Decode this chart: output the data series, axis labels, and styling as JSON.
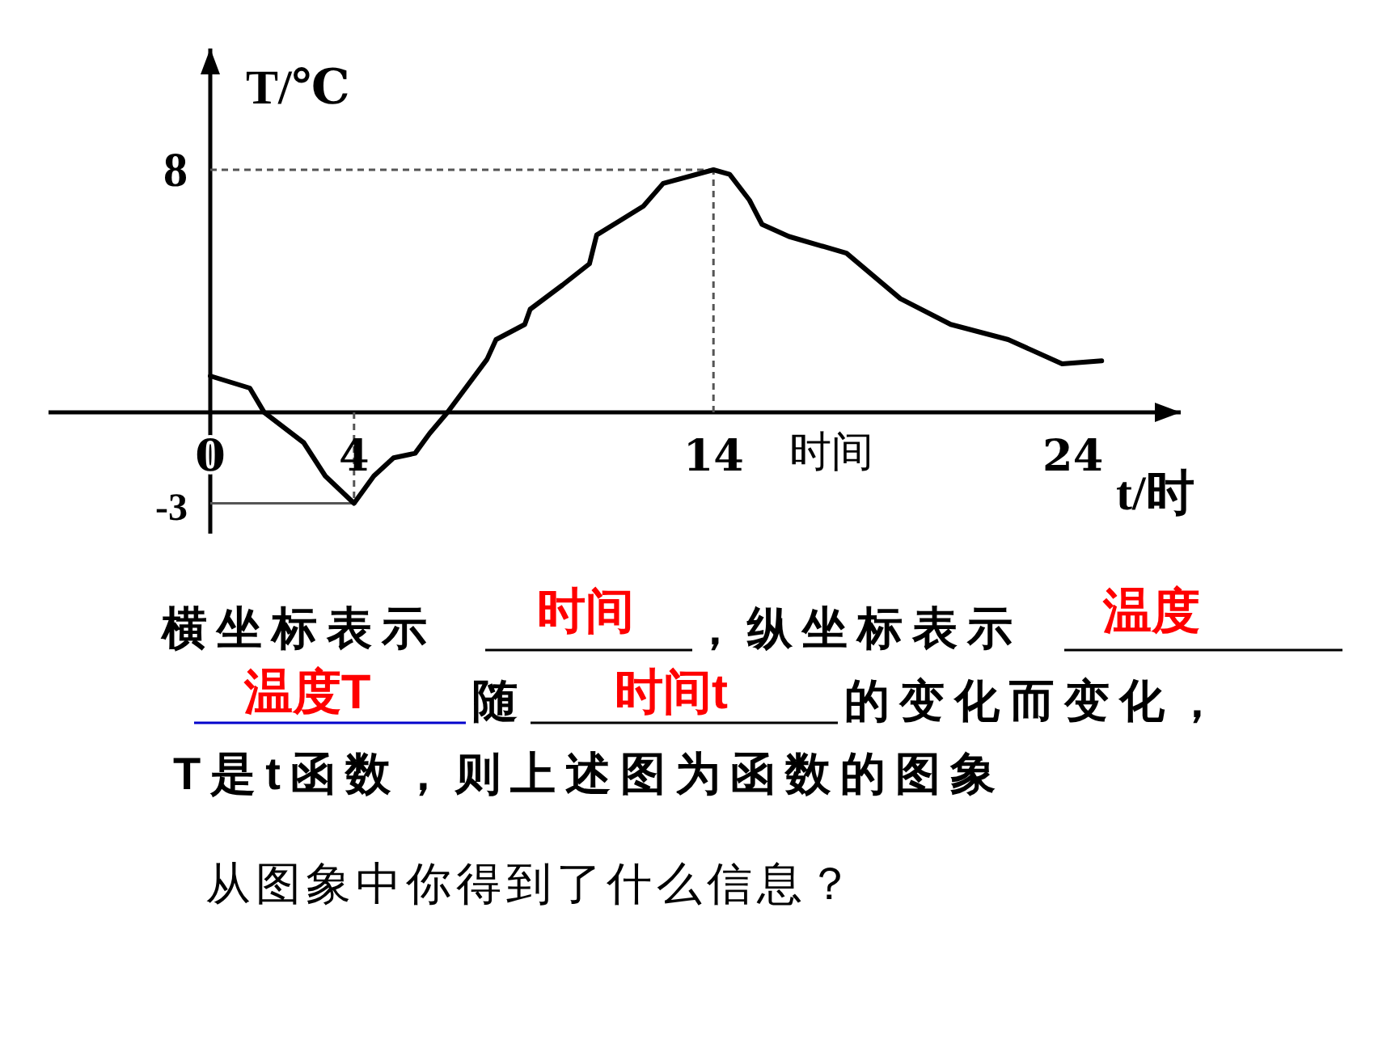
{
  "chart_data": {
    "type": "line",
    "xlabel": "t/时",
    "ylabel": "T/℃",
    "xlim": [
      -4.5,
      27
    ],
    "ylim": [
      -4,
      12
    ],
    "xticks": [
      0,
      4,
      14,
      24
    ],
    "yticks": [
      8,
      -3
    ],
    "series": [
      {
        "color": "#000000",
        "x": [
          0,
          1.1,
          1.5,
          2.6,
          3.2,
          4,
          4.55,
          5.1,
          5.7,
          6.1,
          6.6,
          7.7,
          7.95,
          8.75,
          8.9,
          9.8,
          10.55,
          10.75,
          12.05,
          12.6,
          14,
          14.45,
          15.0,
          15.35,
          16.1,
          17.7,
          19.2,
          20.6,
          22.2,
          23.7,
          24.8
        ],
        "values": [
          1.2,
          0.8,
          0,
          -1.0,
          -2.1,
          -3,
          -2.1,
          -1.5,
          -1.35,
          -0.7,
          0,
          1.75,
          2.4,
          2.9,
          3.4,
          4.2,
          4.9,
          5.85,
          6.8,
          7.55,
          8,
          7.85,
          7.0,
          6.2,
          5.8,
          5.25,
          3.75,
          2.9,
          2.4,
          1.6,
          1.7
        ]
      }
    ],
    "ref_lines": [
      {
        "axis": "y",
        "value": 8,
        "line_style": "dashed",
        "color": "#555555"
      },
      {
        "axis": "x",
        "value": 14,
        "line_style": "dashed",
        "color": "#555555"
      },
      {
        "axis": "x",
        "value": 4,
        "line_style": "dashed",
        "color": "#555555"
      },
      {
        "axis": "y",
        "value": -3,
        "line_style": "solid",
        "color": "#555555"
      }
    ],
    "annotations": [
      "时间",
      "横坐标表示",
      "时间",
      "，纵坐标表示",
      "温度",
      "温度T",
      "随",
      "时间t",
      "的变化而变化，",
      "T是t函数，则上述图为函数的图象",
      "从图象中你得到了什么信息？"
    ]
  }
}
